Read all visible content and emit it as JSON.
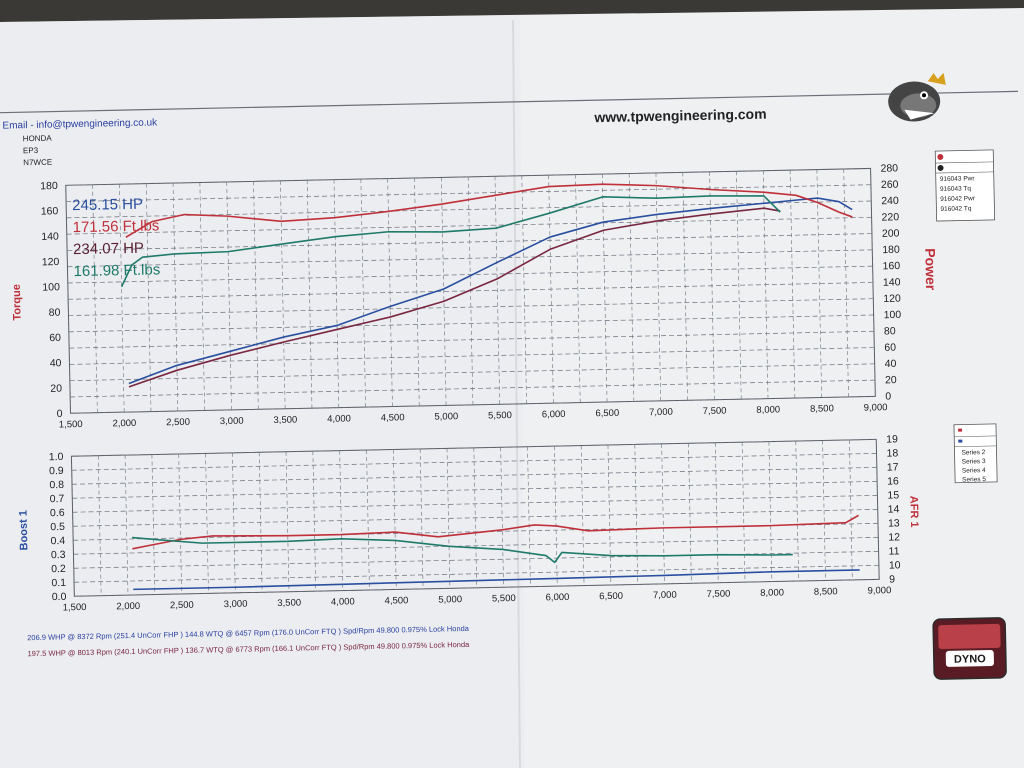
{
  "header": {
    "email": "Email - info@tpwengineering.co.uk",
    "make": "HONDA",
    "model": "EP3",
    "reg": "N7WCE",
    "website": "www.tpwengineering.com"
  },
  "colors": {
    "run1_power": "#2a4fa0",
    "run1_torque": "#c0303a",
    "run2_power": "#7a2640",
    "run2_torque": "#1f7a6a",
    "afr": "#c0303a",
    "afr2": "#1f7a6a",
    "boost": "#2a4fa0",
    "grid": "#6a6f7a",
    "axis_label": "#c0303a",
    "boost_label": "#2a4fa0"
  },
  "chart_data": [
    {
      "type": "line",
      "x_label_ticks": [
        "1,500",
        "2,000",
        "2,500",
        "3,000",
        "3,500",
        "4,000",
        "4,500",
        "5,000",
        "5,500",
        "6,000",
        "6,500",
        "7,000",
        "7,500",
        "8,000",
        "8,500",
        "9,000"
      ],
      "xlim": [
        1500,
        9000
      ],
      "ylabel": "Torque",
      "ylim": [
        0,
        180
      ],
      "yticks": [
        "0",
        "20",
        "40",
        "60",
        "80",
        "100",
        "120",
        "140",
        "160",
        "180"
      ],
      "y2label": "Power",
      "y2lim": [
        0,
        280
      ],
      "y2ticks": [
        "0",
        "20",
        "40",
        "60",
        "80",
        "100",
        "120",
        "140",
        "160",
        "180",
        "200",
        "220",
        "240",
        "260",
        "280"
      ],
      "peak_labels": [
        "245.15 HP",
        "171.56 Ft.lbs",
        "234.07 HP",
        "161.98 Ft.lbs"
      ],
      "legend": [
        "916043 Pwr",
        "916043 Tq",
        "916042 Pwr",
        "916042 Tq"
      ],
      "series": [
        {
          "name": "916043 Pwr",
          "axis": "right",
          "x": [
            2050,
            2500,
            3000,
            3500,
            4000,
            4500,
            5000,
            5500,
            6000,
            6500,
            7000,
            7500,
            8000,
            8300,
            8500,
            8700,
            8820
          ],
          "y": [
            35,
            56,
            72,
            88,
            101,
            123,
            143,
            174,
            204,
            221,
            229,
            235,
            240,
            243,
            245,
            240,
            230
          ]
        },
        {
          "name": "916043 Tq",
          "axis": "left",
          "x": [
            2050,
            2300,
            2600,
            3000,
            3500,
            4000,
            4500,
            5000,
            5500,
            6000,
            6500,
            7000,
            7500,
            8000,
            8300,
            8500,
            8700,
            8820
          ],
          "y": [
            138,
            150,
            155,
            153,
            148,
            150,
            154,
            159,
            165,
            171,
            172,
            170,
            166,
            163,
            160,
            154,
            146,
            142
          ]
        },
        {
          "name": "916042 Pwr",
          "axis": "left2",
          "x": [
            2050,
            2500,
            3000,
            3500,
            4000,
            4500,
            5000,
            5500,
            6000,
            6500,
            7000,
            7500,
            8000,
            8150
          ],
          "y": [
            31,
            50,
            67,
            82,
            96,
            110,
            128,
            154,
            189,
            211,
            221,
            228,
            234,
            230
          ]
        },
        {
          "name": "916042 Tq",
          "axis": "left",
          "x": [
            2000,
            2100,
            2200,
            2500,
            3000,
            3500,
            4000,
            4500,
            5000,
            5500,
            6000,
            6500,
            7000,
            7500,
            8000,
            8150
          ],
          "y": [
            99,
            116,
            122,
            124,
            125,
            130,
            135,
            138,
            137,
            139,
            150,
            162,
            160,
            161,
            160,
            147
          ]
        }
      ]
    },
    {
      "type": "line",
      "x_label_ticks": [
        "1,500",
        "2,000",
        "2,500",
        "3,000",
        "3,500",
        "4,000",
        "4,500",
        "5,000",
        "5,500",
        "6,000",
        "6,500",
        "7,000",
        "7,500",
        "8,000",
        "8,500",
        "9,000"
      ],
      "xlim": [
        1500,
        9000
      ],
      "ylabel": "Boost 1",
      "ylim": [
        0,
        1.0
      ],
      "yticks": [
        "0.0",
        "0.1",
        "0.2",
        "0.3",
        "0.4",
        "0.5",
        "0.6",
        "0.7",
        "0.8",
        "0.9",
        "1.0"
      ],
      "y2label": "AFR 1",
      "y2lim": [
        9,
        19
      ],
      "y2ticks": [
        "9",
        "10",
        "11",
        "12",
        "13",
        "14",
        "15",
        "16",
        "17",
        "18",
        "19"
      ],
      "legend": [
        "Series 2",
        "Series 3",
        "Series 4",
        "Series 5"
      ],
      "series": [
        {
          "name": "Series 3",
          "axis": "right",
          "x": [
            2050,
            2200,
            2500,
            2800,
            3500,
            4000,
            4500,
            4900,
            5500,
            5800,
            6000,
            6300,
            7000,
            8000,
            8700,
            8820
          ],
          "y": [
            12.3,
            12.5,
            12.9,
            13.1,
            13.0,
            13.0,
            13.1,
            12.7,
            13.1,
            13.4,
            13.3,
            12.9,
            13.0,
            13.0,
            13.1,
            13.6
          ]
        },
        {
          "name": "Series 4",
          "axis": "right",
          "x": [
            2050,
            2300,
            2700,
            3500,
            4000,
            4500,
            5000,
            5500,
            5900,
            5980,
            6050,
            6500,
            7000,
            7500,
            8000,
            8200
          ],
          "y": [
            13.1,
            12.9,
            12.6,
            12.6,
            12.7,
            12.5,
            12.0,
            11.7,
            11.2,
            10.7,
            11.4,
            11.1,
            11.0,
            11.0,
            10.9,
            10.9
          ]
        },
        {
          "name": "Series 2",
          "axis": "left",
          "x": [
            2050,
            3000,
            4000,
            5000,
            6000,
            7000,
            8000,
            8820
          ],
          "y": [
            0.04,
            0.04,
            0.045,
            0.05,
            0.055,
            0.06,
            0.07,
            0.07
          ]
        }
      ]
    }
  ],
  "footer": {
    "run1": "206.9 WHP @ 8372 Rpm (251.4 UnCorr FHP )  144.8 WTQ @ 6457 Rpm (176.0 UnCorr FTQ )  Spd/Rpm 49.800 0.975% Lock Honda",
    "run2": "197.5 WHP @ 8013 Rpm (240.1 UnCorr FHP )  136.7 WTQ @ 6773 Rpm (166.1 UnCorr FTQ )  Spd/Rpm 49.800 0.975% Lock Honda",
    "badge": "DYNO"
  }
}
